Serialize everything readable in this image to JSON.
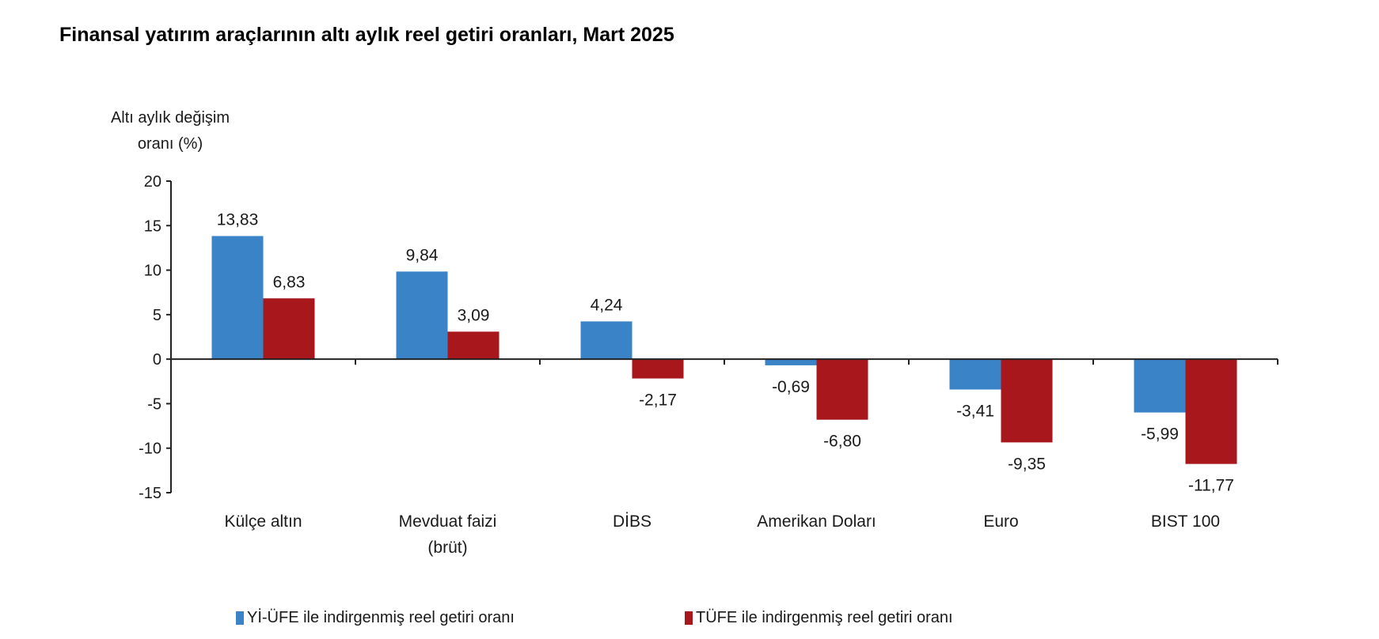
{
  "chart_data": {
    "type": "bar",
    "title": "Finansal yatırım araçlarının altı aylık reel getiri oranları, Mart 2025",
    "ylabel": [
      "Altı aylık değişim",
      "oranı (%)"
    ],
    "xlabel": "",
    "categories": [
      [
        "Külçe altın"
      ],
      [
        "Mevduat faizi",
        "(brüt)"
      ],
      [
        "DİBS"
      ],
      [
        "Amerikan Doları"
      ],
      [
        "Euro"
      ],
      [
        "BIST 100"
      ]
    ],
    "series": [
      {
        "name": "Yİ-ÜFE ile indirgenmiş reel getiri oranı",
        "color": "#3a83c7",
        "values": [
          13.83,
          9.84,
          4.24,
          -0.69,
          -3.41,
          -5.99
        ],
        "labels": [
          "13,83",
          "9,84",
          "4,24",
          "-0,69",
          "-3,41",
          "-5,99"
        ]
      },
      {
        "name": "TÜFE ile indirgenmiş reel getiri oranı",
        "color": "#a8171c",
        "values": [
          6.83,
          3.09,
          -2.17,
          -6.8,
          -9.35,
          -11.77
        ],
        "labels": [
          "6,83",
          "3,09",
          "-2,17",
          "-6,80",
          "-9,35",
          "-11,77"
        ]
      }
    ],
    "ylim": [
      -15,
      20
    ],
    "yticks": [
      20,
      15,
      10,
      5,
      0,
      -5,
      -10,
      -15
    ],
    "grid": false,
    "legend_position": "bottom"
  }
}
